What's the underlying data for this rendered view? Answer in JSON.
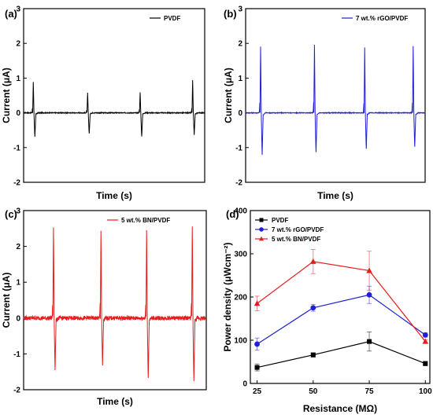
{
  "chart_data": [
    {
      "type": "line",
      "panel_label": "(a)",
      "title": "",
      "xlabel": "Time (s)",
      "ylabel": "Current (μA)",
      "ylim": [
        -2,
        3
      ],
      "yticks": [
        -2,
        -1,
        0,
        1,
        2,
        3
      ],
      "grid": false,
      "legend_position": "top-right",
      "series": [
        {
          "name": "PVDF",
          "color": "#000000",
          "pulses": [
            {
              "t": 0.05,
              "peak": 0.93,
              "trough": -0.72
            },
            {
              "t": 0.35,
              "peak": 0.6,
              "trough": -0.62
            },
            {
              "t": 0.64,
              "peak": 0.62,
              "trough": -0.72
            },
            {
              "t": 0.93,
              "peak": 0.98,
              "trough": -0.65
            }
          ],
          "noise": 0.012
        }
      ]
    },
    {
      "type": "line",
      "panel_label": "(b)",
      "title": "",
      "xlabel": "Time (s)",
      "ylabel": "Current (μA)",
      "ylim": [
        -2,
        3
      ],
      "yticks": [
        -2,
        -1,
        0,
        1,
        2,
        3
      ],
      "grid": false,
      "legend_position": "top-right",
      "series": [
        {
          "name": "7 wt.% rGO/PVDF",
          "color": "#1f1fd6",
          "pulses": [
            {
              "t": 0.08,
              "peak": 2.0,
              "trough": -1.25
            },
            {
              "t": 0.38,
              "peak": 2.05,
              "trough": -1.18
            },
            {
              "t": 0.66,
              "peak": 1.97,
              "trough": -1.08
            },
            {
              "t": 0.93,
              "peak": 2.02,
              "trough": -1.02
            }
          ],
          "noise": 0.01
        }
      ]
    },
    {
      "type": "line",
      "panel_label": "(c)",
      "title": "",
      "xlabel": "Time (s)",
      "ylabel": "Current (μA)",
      "ylim": [
        -2,
        3
      ],
      "yticks": [
        -2,
        -1,
        0,
        1,
        2,
        3
      ],
      "grid": false,
      "legend_position": "top-right",
      "series": [
        {
          "name": "5 wt.% BN/PVDF",
          "color": "#e81c1c",
          "pulses": [
            {
              "t": 0.16,
              "peak": 2.7,
              "trough": -1.45
            },
            {
              "t": 0.42,
              "peak": 2.6,
              "trough": -1.38
            },
            {
              "t": 0.67,
              "peak": 2.58,
              "trough": -1.72
            },
            {
              "t": 0.92,
              "peak": 2.72,
              "trough": -1.85
            }
          ],
          "noise": 0.06
        }
      ]
    },
    {
      "type": "line",
      "panel_label": "(d)",
      "title": "",
      "xlabel": "Resistance (MΩ)",
      "ylabel": "Power density (μWcm⁻²)",
      "categories": [
        "25",
        "50",
        "75",
        "100"
      ],
      "ylim": [
        0,
        400
      ],
      "yticks": [
        0,
        100,
        200,
        300,
        400
      ],
      "grid": false,
      "legend_position": "top-right",
      "series": [
        {
          "name": "PVDF",
          "color": "#000000",
          "marker": "square",
          "values": [
            37,
            66,
            97,
            46
          ],
          "errors": [
            8,
            5,
            22,
            5
          ]
        },
        {
          "name": "7 wt.% rGO/PVDF",
          "color": "#1f1fd6",
          "marker": "circle",
          "values": [
            91,
            175,
            205,
            112
          ],
          "errors": [
            14,
            8,
            20,
            5
          ]
        },
        {
          "name": "5 wt.% BN/PVDF",
          "color": "#e81c1c",
          "marker": "triangle",
          "values": [
            185,
            282,
            261,
            97
          ],
          "errors": [
            17,
            28,
            45,
            4
          ]
        }
      ]
    }
  ]
}
